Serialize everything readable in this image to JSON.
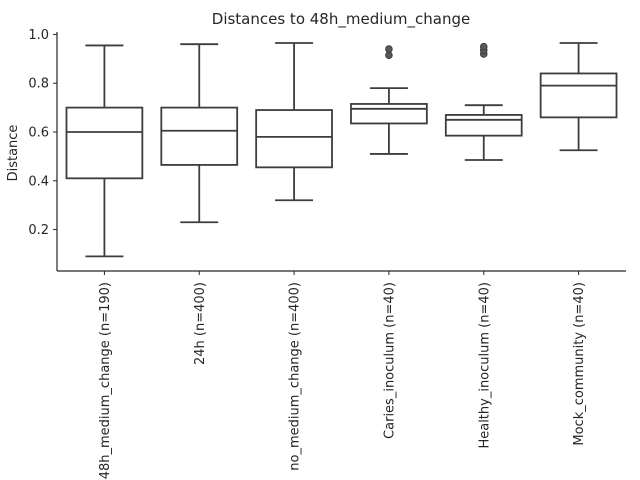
{
  "chart_data": {
    "type": "box",
    "title": "Distances to 48h_medium_change",
    "xlabel": "",
    "ylabel": "Distance",
    "ylim": [
      0.03,
      1.01
    ],
    "yticks": [
      "0.2",
      "0.4",
      "0.6",
      "0.8",
      "1.0"
    ],
    "grid": false,
    "categories": [
      "48h_medium_change (n=190)",
      "24h (n=400)",
      "no_medium_change (n=400)",
      "Caries_inoculum (n=40)",
      "Healthy_inoculum (n=40)",
      "Mock_community (n=40)"
    ],
    "boxes": [
      {
        "whisker_low": 0.09,
        "q1": 0.41,
        "median": 0.6,
        "q3": 0.7,
        "whisker_high": 0.955,
        "outliers": []
      },
      {
        "whisker_low": 0.23,
        "q1": 0.465,
        "median": 0.605,
        "q3": 0.7,
        "whisker_high": 0.96,
        "outliers": []
      },
      {
        "whisker_low": 0.32,
        "q1": 0.455,
        "median": 0.58,
        "q3": 0.69,
        "whisker_high": 0.965,
        "outliers": []
      },
      {
        "whisker_low": 0.51,
        "q1": 0.635,
        "median": 0.695,
        "q3": 0.715,
        "whisker_high": 0.78,
        "outliers": [
          0.915,
          0.94
        ]
      },
      {
        "whisker_low": 0.485,
        "q1": 0.585,
        "median": 0.65,
        "q3": 0.67,
        "whisker_high": 0.71,
        "outliers": [
          0.92,
          0.935,
          0.95
        ]
      },
      {
        "whisker_low": 0.525,
        "q1": 0.66,
        "median": 0.79,
        "q3": 0.84,
        "whisker_high": 0.965,
        "outliers": []
      }
    ]
  }
}
